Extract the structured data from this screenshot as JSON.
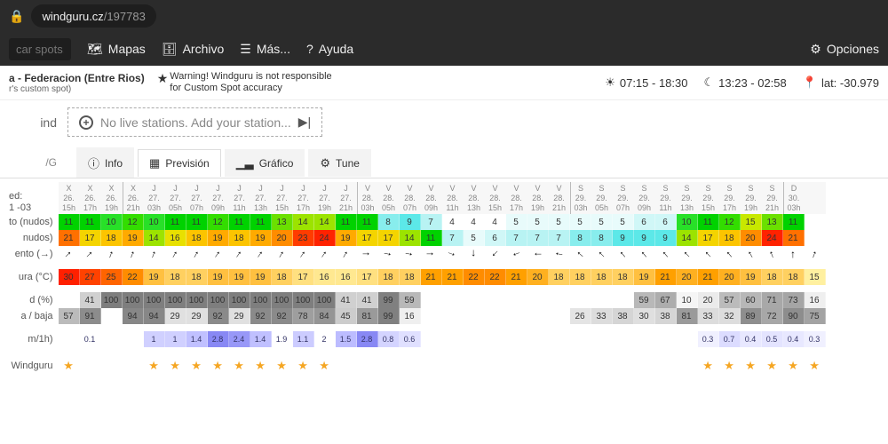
{
  "browser": {
    "domain": "windguru.cz",
    "path": "/197783"
  },
  "topnav": {
    "search_placeholder": "car spots...",
    "mapas": "Mapas",
    "archivo": "Archivo",
    "mas": "Más...",
    "ayuda": "Ayuda",
    "opciones": "Opciones"
  },
  "location": {
    "title": "a - Federacion (Entre Rios)",
    "subtitle": "r's custom spot)",
    "warning1": "Warning! Windguru is not responsible",
    "warning2": "for Custom Spot accuracy",
    "sun": "07:15 - 18:30",
    "moon": "13:23 - 02:58",
    "coords": "lat: -30.979"
  },
  "station": {
    "label": "ind",
    "text": "No live stations. Add your station..."
  },
  "tabs": {
    "model": "/G",
    "info": "Info",
    "prevision": "Previsión",
    "grafico": "Gráfico",
    "tune": "Tune"
  },
  "rowLabels": {
    "updated1": "ed:",
    "updated2": "1 -03",
    "wind": "to (nudos)",
    "gust": "nudos)",
    "dir": "ento (→)",
    "temp": "ura (°C)",
    "cloud": "d (%)",
    "cloud2": "a / baja",
    "rain": "m/1h)",
    "rating": "Windguru"
  },
  "colors": {
    "wind": {
      "4": "#ffffff",
      "5": "#e8fbfb",
      "6": "#d0f7f7",
      "7": "#b8f3f3",
      "8": "#88eded",
      "9": "#5ce8e8",
      "10": "#28e028",
      "11": "#00d200",
      "12": "#33dd00",
      "13": "#6be000",
      "14": "#9ce300",
      "15": "#c8e800",
      "16": "#e8e000",
      "17": "#f4d400",
      "18": "#fcc400",
      "19": "#ffaa00",
      "20": "#ff8c00",
      "21": "#ff7000",
      "22": "#ff5600",
      "23": "#ff3c00",
      "24": "#ff2200",
      "25": "#ff0a00",
      "27": "#f80000",
      "30": "#e00000"
    },
    "temp": {
      "15": "#fff0a0",
      "16": "#ffe890",
      "17": "#ffe080",
      "18": "#ffd060",
      "19": "#ffc040",
      "20": "#ffb020",
      "21": "#ffa000",
      "22": "#ff8c00",
      "25": "#ff6400",
      "27": "#ff4200",
      "30": "#ff2000"
    },
    "cloud": {
      "10": "#f5f5f5",
      "16": "#efefef",
      "20": "#ebebeb",
      "21": "#eaeaea",
      "25": "#e5e5e5",
      "26": "#e4e4e4",
      "29": "#e0e0e0",
      "30": "#dfdfdf",
      "31": "#dedede",
      "32": "#dddddd",
      "33": "#dcdcdc",
      "38": "#d5d5d5",
      "41": "#d0d0d0",
      "43": "#cecece",
      "45": "#cccccc",
      "51": "#c4c4c4",
      "53": "#c1c1c1",
      "57": "#bbbbbb",
      "59": "#b8b8b8",
      "60": "#b7b7b7",
      "62": "#b4b4b4",
      "63": "#b3b3b3",
      "65": "#b0b0b0",
      "67": "#adadad",
      "70": "#a9a9a9",
      "71": "#a8a8a8",
      "72": "#a7a7a7",
      "73": "#a5a5a5",
      "74": "#a4a4a4",
      "75": "#a3a3a3",
      "78": "#9e9e9e",
      "81": "#9a9a9a",
      "82": "#989898",
      "83": "#979797",
      "84": "#959595",
      "85": "#949494",
      "88": "#909090",
      "89": "#8e8e8e",
      "90": "#8d8d8d",
      "91": "#8c8c8c",
      "92": "#8a8a8a",
      "93": "#898989",
      "94": "#878787",
      "95": "#868686",
      "99": "#808080",
      "100": "#7e7e7e"
    },
    "rain": {
      "0.1": "#ffffff",
      "0.3": "#f0f0ff",
      "0.4": "#e8e8ff",
      "0.5": "#e4e4ff",
      "0.6": "#e0e0ff",
      "0.7": "#dcdcff",
      "0.8": "#d4d4ff",
      "1": "#d0d0ff",
      "1.1": "#ccccff",
      "1.4": "#c0c0ff",
      "1.5": "#bcbcff",
      "2.4": "#9898f8",
      "2.8": "#8888f4"
    }
  },
  "columns": [
    {
      "d": "X",
      "dn": "26.",
      "h": "15h",
      "wind": 11,
      "gust": 21,
      "dir": 225,
      "temp": 30,
      "c1": null,
      "c2": 57,
      "rain": null,
      "star": true
    },
    {
      "d": "X",
      "dn": "26.",
      "h": "17h",
      "wind": 11,
      "gust": 17,
      "dir": 225,
      "temp": 27,
      "c1": 41,
      "c2": 91,
      "rain": 0.1,
      "star": false
    },
    {
      "d": "X",
      "dn": "26.",
      "h": "19h",
      "wind": 10,
      "gust": 18,
      "dir": 200,
      "temp": 25,
      "c1": 100,
      "c2": null,
      "rain": null,
      "star": false
    },
    {
      "d": "X",
      "dn": "26.",
      "h": "21h",
      "sep": true,
      "wind": 12,
      "gust": 19,
      "dir": 200,
      "temp": 22,
      "c1": 100,
      "c2": 94,
      "rain": null,
      "star": false
    },
    {
      "d": "J",
      "dn": "27.",
      "h": "03h",
      "wind": 10,
      "gust": 14,
      "dir": 200,
      "temp": 19,
      "c1": 100,
      "c2": 94,
      "rain": 1,
      "star": true
    },
    {
      "d": "J",
      "dn": "27.",
      "h": "05h",
      "wind": 11,
      "gust": 16,
      "dir": 210,
      "temp": 18,
      "c1": 100,
      "c2": 29,
      "rain": 1,
      "star": true
    },
    {
      "d": "J",
      "dn": "27.",
      "h": "07h",
      "wind": 11,
      "gust": 18,
      "dir": 210,
      "temp": 18,
      "c1": 100,
      "c2": 29,
      "rain": 1.4,
      "star": true
    },
    {
      "d": "J",
      "dn": "27.",
      "h": "09h",
      "wind": 12,
      "gust": 19,
      "dir": 215,
      "temp": 19,
      "c1": 100,
      "c2": 92,
      "rain": 2.8,
      "star": true
    },
    {
      "d": "J",
      "dn": "27.",
      "h": "11h",
      "wind": 11,
      "gust": 18,
      "dir": 215,
      "temp": 19,
      "c1": 100,
      "c2": 29,
      "rain": 2.4,
      "star": true
    },
    {
      "d": "J",
      "dn": "27.",
      "h": "13h",
      "wind": 11,
      "gust": 19,
      "dir": 215,
      "temp": 19,
      "c1": 100,
      "c2": 92,
      "rain": 1.4,
      "star": true
    },
    {
      "d": "J",
      "dn": "27.",
      "h": "15h",
      "wind": 13,
      "gust": 20,
      "dir": 210,
      "temp": 18,
      "c1": 100,
      "c2": 92,
      "rain": 1.9,
      "star": true
    },
    {
      "d": "J",
      "dn": "27.",
      "h": "17h",
      "wind": 14,
      "gust": 23,
      "dir": 215,
      "temp": 17,
      "c1": 100,
      "c2": 78,
      "rain": 1.1,
      "star": true
    },
    {
      "d": "J",
      "dn": "27.",
      "h": "19h",
      "wind": 14,
      "gust": 24,
      "dir": 215,
      "temp": 16,
      "c1": 100,
      "c2": 84,
      "rain": 2,
      "star": true
    },
    {
      "d": "J",
      "dn": "27.",
      "h": "21h",
      "wind": 11,
      "gust": 19,
      "dir": 210,
      "temp": 16,
      "c1": 41,
      "c2": 45,
      "rain": 1.5,
      "star": false
    },
    {
      "d": "V",
      "dn": "28.",
      "h": "03h",
      "sep": true,
      "wind": 11,
      "gust": 17,
      "dir": 270,
      "temp": 17,
      "c1": 41,
      "c2": 81,
      "rain": 2.8,
      "star": false
    },
    {
      "d": "V",
      "dn": "28.",
      "h": "05h",
      "wind": 8,
      "gust": 17,
      "dir": 280,
      "temp": 18,
      "c1": 99,
      "c2": 99,
      "rain": 0.8,
      "star": false
    },
    {
      "d": "V",
      "dn": "28.",
      "h": "07h",
      "wind": 9,
      "gust": 14,
      "dir": 280,
      "temp": 18,
      "c1": 59,
      "c2": 16,
      "rain": 0.6,
      "star": false
    },
    {
      "d": "V",
      "dn": "28.",
      "h": "09h",
      "wind": 7,
      "gust": 11,
      "dir": 270,
      "temp": 21,
      "c1": null,
      "c2": null,
      "rain": null,
      "star": false
    },
    {
      "d": "V",
      "dn": "28.",
      "h": "11h",
      "wind": 4,
      "gust": 7,
      "dir": 290,
      "temp": 21,
      "c1": null,
      "c2": null,
      "rain": null,
      "star": false
    },
    {
      "d": "V",
      "dn": "28.",
      "h": "13h",
      "wind": 4,
      "gust": 5,
      "dir": 0,
      "temp": 22,
      "c1": null,
      "c2": null,
      "rain": null,
      "star": false
    },
    {
      "d": "V",
      "dn": "28.",
      "h": "15h",
      "wind": 4,
      "gust": 6,
      "dir": 45,
      "temp": 22,
      "c1": null,
      "c2": null,
      "rain": null,
      "star": false
    },
    {
      "d": "V",
      "dn": "28.",
      "h": "17h",
      "wind": 5,
      "gust": 7,
      "dir": 70,
      "temp": 21,
      "c1": null,
      "c2": null,
      "rain": null,
      "star": false
    },
    {
      "d": "V",
      "dn": "28.",
      "h": "19h",
      "wind": 5,
      "gust": 7,
      "dir": 90,
      "temp": 20,
      "c1": null,
      "c2": null,
      "rain": null,
      "star": false
    },
    {
      "d": "V",
      "dn": "28.",
      "h": "21h",
      "wind": 5,
      "gust": 7,
      "dir": 100,
      "temp": 18,
      "c1": null,
      "c2": null,
      "rain": null,
      "star": false
    },
    {
      "d": "S",
      "dn": "29.",
      "h": "03h",
      "sep": true,
      "wind": 5,
      "gust": 8,
      "dir": 130,
      "temp": 18,
      "c1": null,
      "c2": 26,
      "rain": null,
      "star": false
    },
    {
      "d": "S",
      "dn": "29.",
      "h": "05h",
      "wind": 5,
      "gust": 8,
      "dir": 135,
      "temp": 18,
      "c1": null,
      "c2": 33,
      "rain": null,
      "star": false
    },
    {
      "d": "S",
      "dn": "29.",
      "h": "07h",
      "wind": 5,
      "gust": 9,
      "dir": 140,
      "temp": 18,
      "c1": null,
      "c2": 38,
      "rain": null,
      "star": false
    },
    {
      "d": "S",
      "dn": "29.",
      "h": "09h",
      "wind": 6,
      "gust": 9,
      "dir": 140,
      "temp": 19,
      "c1": 59,
      "c2": 30,
      "rain": null,
      "star": false
    },
    {
      "d": "S",
      "dn": "29.",
      "h": "11h",
      "wind": 6,
      "gust": 9,
      "dir": 140,
      "temp": 21,
      "c1": 67,
      "c2": 38,
      "rain": null,
      "star": false
    },
    {
      "d": "S",
      "dn": "29.",
      "h": "13h",
      "wind": 10,
      "gust": 14,
      "dir": 135,
      "temp": 20,
      "c1": 10,
      "c2": 81,
      "rain": null,
      "star": false
    },
    {
      "d": "S",
      "dn": "29.",
      "h": "15h",
      "wind": 11,
      "gust": 17,
      "dir": 135,
      "temp": 21,
      "c1": 20,
      "c2": 33,
      "rain": 0.3,
      "star": true
    },
    {
      "d": "S",
      "dn": "29.",
      "h": "17h",
      "wind": 12,
      "gust": 18,
      "dir": 140,
      "temp": 20,
      "c1": 57,
      "c2": 32,
      "rain": 0.7,
      "star": true
    },
    {
      "d": "S",
      "dn": "29.",
      "h": "19h",
      "wind": 15,
      "gust": 20,
      "dir": 150,
      "temp": 19,
      "c1": 60,
      "c2": 89,
      "rain": 0.4,
      "star": true
    },
    {
      "d": "S",
      "dn": "29.",
      "h": "21h",
      "wind": 13,
      "gust": 24,
      "dir": 160,
      "temp": 18,
      "c1": 71,
      "c2": 72,
      "rain": 0.5,
      "star": true
    },
    {
      "d": "D",
      "dn": "30.",
      "h": "03h",
      "sep": true,
      "wind": 11,
      "gust": 21,
      "dir": 180,
      "temp": 18,
      "c1": 73,
      "c2": 90,
      "rain": 0.4,
      "star": true
    },
    {
      "d": "",
      "dn": "",
      "h": "",
      "wind": null,
      "gust": null,
      "dir": 200,
      "temp": 15,
      "c1": 16,
      "c2": 75,
      "rain": 0.3,
      "star": true
    }
  ]
}
